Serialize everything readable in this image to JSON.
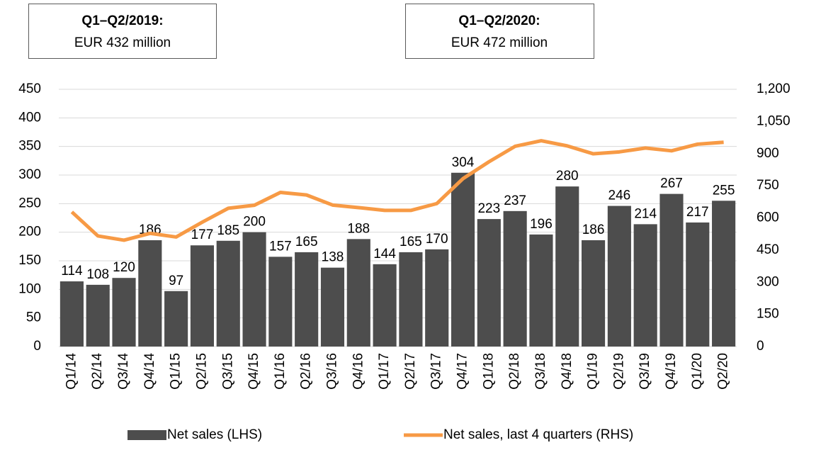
{
  "chart_data": {
    "type": "bar_line",
    "annotations": [
      {
        "title": "Q1–Q2/2019:",
        "text": "EUR 432 million"
      },
      {
        "title": "Q1–Q2/2020:",
        "text": "EUR 472 million"
      }
    ],
    "categories": [
      "Q1/14",
      "Q2/14",
      "Q3/14",
      "Q4/14",
      "Q1/15",
      "Q2/15",
      "Q3/15",
      "Q4/15",
      "Q1/16",
      "Q2/16",
      "Q3/16",
      "Q4/16",
      "Q1/17",
      "Q2/17",
      "Q3/17",
      "Q4/17",
      "Q1/18",
      "Q2/18",
      "Q3/18",
      "Q4/18",
      "Q1/19",
      "Q2/19",
      "Q3/19",
      "Q4/19",
      "Q1/20",
      "Q2/20"
    ],
    "series": [
      {
        "name": "Net sales (LHS)",
        "color": "#4d4d4d",
        "kind": "bar",
        "values": [
          114,
          108,
          120,
          186,
          97,
          177,
          185,
          200,
          157,
          165,
          138,
          188,
          144,
          165,
          170,
          304,
          223,
          237,
          196,
          280,
          186,
          246,
          214,
          267,
          217,
          255
        ]
      },
      {
        "name": "Net sales, last 4 quarters (RHS)",
        "color": "#f79a45",
        "kind": "line",
        "axis": "y2",
        "values": [
          628,
          516,
          496,
          528,
          511,
          580,
          645,
          659,
          719,
          707,
          660,
          648,
          635,
          635,
          667,
          783,
          862,
          934,
          960,
          936,
          899,
          908,
          926,
          913,
          944,
          953
        ]
      }
    ],
    "ylim": [
      0,
      450
    ],
    "yticks": [
      0,
      50,
      100,
      150,
      200,
      250,
      300,
      350,
      400,
      450
    ],
    "y2lim": [
      0,
      1200
    ],
    "y2ticks": [
      0,
      150,
      300,
      450,
      600,
      750,
      900,
      {
        "value": 1050,
        "label": "1,050"
      },
      {
        "value": 1200,
        "label": "1,200"
      }
    ],
    "grid": true
  }
}
